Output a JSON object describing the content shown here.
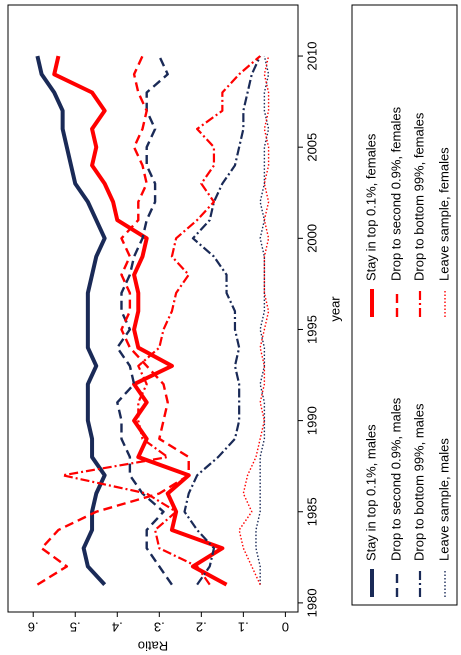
{
  "chart_data": {
    "type": "line",
    "x_label": "year",
    "y_label": "Ratio",
    "x": [
      1981,
      1982,
      1983,
      1984,
      1985,
      1986,
      1987,
      1988,
      1989,
      1990,
      1991,
      1992,
      1993,
      1994,
      1995,
      1996,
      1997,
      1998,
      1999,
      2000,
      2001,
      2002,
      2003,
      2004,
      2005,
      2006,
      2007,
      2008,
      2009,
      2010
    ],
    "xlim": [
      1979.5,
      2012.8
    ],
    "xticks": [
      1980,
      1985,
      1990,
      1995,
      2000,
      2005,
      2010
    ],
    "ylim": [
      -0.03,
      0.66
    ],
    "yticks": [
      0,
      {
        "value": 0.1,
        "label": ".1"
      },
      {
        "value": 0.2,
        "label": ".2"
      },
      {
        "value": 0.3,
        "label": ".3"
      },
      {
        "value": 0.4,
        "label": ".4"
      },
      {
        "value": 0.5,
        "label": ".5"
      },
      {
        "value": 0.6,
        "label": ".6"
      }
    ],
    "legend": "bottom",
    "series": [
      {
        "name": "Stay in top 0.1%, males",
        "color": "#1a2a57",
        "dash": "solid",
        "width": 4,
        "values": [
          0.43,
          0.47,
          0.48,
          0.46,
          0.46,
          0.45,
          0.43,
          0.46,
          0.46,
          0.47,
          0.47,
          0.47,
          0.45,
          0.47,
          0.47,
          0.47,
          0.47,
          0.46,
          0.45,
          0.43,
          0.45,
          0.47,
          0.5,
          0.51,
          0.52,
          0.53,
          0.53,
          0.55,
          0.58,
          0.59
        ]
      },
      {
        "name": "Stay in top 0.1%, females",
        "color": "#ff0000",
        "dash": "solid",
        "width": 4,
        "values": [
          0.14,
          0.22,
          0.15,
          0.27,
          0.26,
          0.28,
          0.23,
          0.35,
          0.33,
          0.36,
          0.33,
          0.36,
          0.27,
          0.35,
          0.36,
          0.35,
          0.35,
          0.36,
          0.34,
          0.33,
          0.4,
          0.41,
          0.43,
          0.46,
          0.45,
          0.46,
          0.43,
          0.46,
          0.55,
          0.54
        ]
      },
      {
        "name": "Drop to second 0.9%, males",
        "color": "#1a2a57",
        "dash": "dashed",
        "width": 2.4,
        "values": [
          0.27,
          0.3,
          0.33,
          0.33,
          0.29,
          0.34,
          0.37,
          0.37,
          0.39,
          0.39,
          0.4,
          0.36,
          0.37,
          0.4,
          0.37,
          0.39,
          0.39,
          0.37,
          0.36,
          0.34,
          0.33,
          0.31,
          0.31,
          0.33,
          0.33,
          0.31,
          0.33,
          0.33,
          0.28,
          0.3
        ]
      },
      {
        "name": "Drop to second 0.9%, females",
        "color": "#ff0000",
        "dash": "dashed",
        "width": 2.4,
        "values": [
          0.59,
          0.52,
          0.58,
          0.54,
          0.45,
          0.3,
          0.23,
          0.23,
          0.3,
          0.29,
          0.28,
          0.29,
          0.33,
          0.37,
          0.39,
          0.37,
          0.37,
          0.39,
          0.37,
          0.39,
          0.35,
          0.35,
          0.33,
          0.34,
          0.36,
          0.34,
          0.33,
          0.35,
          0.36,
          0.34
        ]
      },
      {
        "name": "Drop to bottom 99%, males",
        "color": "#1a2a57",
        "dash": "dashdot",
        "width": 2.2,
        "values": [
          0.21,
          0.18,
          0.17,
          0.21,
          0.24,
          0.23,
          0.21,
          0.16,
          0.12,
          0.11,
          0.11,
          0.11,
          0.12,
          0.11,
          0.12,
          0.12,
          0.14,
          0.14,
          0.17,
          0.22,
          0.18,
          0.17,
          0.15,
          0.12,
          0.11,
          0.1,
          0.1,
          0.09,
          0.08,
          0.06
        ]
      },
      {
        "name": "Drop to bottom 99%, females",
        "color": "#ff0000",
        "dash": "dashdot",
        "width": 2.2,
        "values": [
          0.18,
          0.21,
          0.3,
          0.31,
          0.26,
          0.33,
          0.53,
          0.28,
          0.34,
          0.35,
          0.35,
          0.33,
          0.35,
          0.3,
          0.29,
          0.27,
          0.26,
          0.23,
          0.27,
          0.26,
          0.21,
          0.17,
          0.2,
          0.17,
          0.17,
          0.21,
          0.15,
          0.15,
          0.11,
          0.06
        ]
      },
      {
        "name": "Leave sample, males",
        "color": "#1a2a57",
        "dash": "dotted",
        "width": 1.4,
        "values": [
          0.06,
          0.06,
          0.07,
          0.07,
          0.06,
          0.06,
          0.06,
          0.06,
          0.05,
          0.05,
          0.05,
          0.06,
          0.05,
          0.05,
          0.06,
          0.05,
          0.05,
          0.05,
          0.05,
          0.06,
          0.05,
          0.06,
          0.05,
          0.05,
          0.05,
          0.04,
          0.05,
          0.05,
          0.04,
          0.05
        ]
      },
      {
        "name": "Leave sample, females",
        "color": "#ff0000",
        "dash": "dotted",
        "width": 1.4,
        "values": [
          0.06,
          0.08,
          0.1,
          0.11,
          0.08,
          0.1,
          0.09,
          0.07,
          0.06,
          0.05,
          0.06,
          0.05,
          0.05,
          0.06,
          0.05,
          0.04,
          0.05,
          0.05,
          0.05,
          0.04,
          0.05,
          0.04,
          0.05,
          0.04,
          0.04,
          0.05,
          0.04,
          0.04,
          0.05,
          0.04
        ]
      }
    ]
  }
}
